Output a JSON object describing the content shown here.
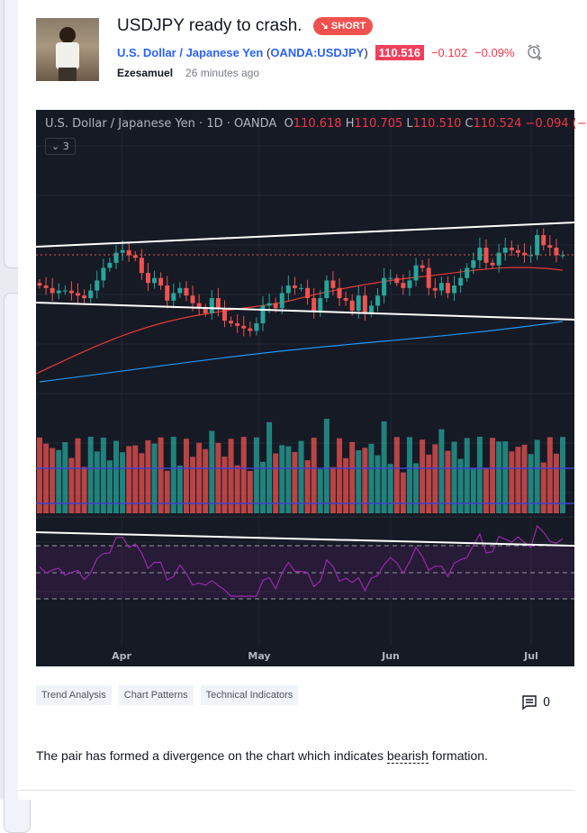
{
  "idea": {
    "title": "USDJPY ready to crash.",
    "badge": "SHORT",
    "badge_icon": "arrow-down-right-icon",
    "author": "Ezesamuel",
    "time": "26 minutes ago"
  },
  "symbol": {
    "name": "U.S. Dollar / Japanese Yen",
    "open_paren": "(",
    "ticker": "OANDA:USDJPY",
    "close_paren": ")",
    "price": "110.516",
    "change": "−0.102",
    "change_pct": "−0.09%"
  },
  "chart": {
    "legend": {
      "name": "U.S. Dollar / Japanese Yen · 1D · OANDA",
      "o_label": "O",
      "o": "110.618",
      "h_label": "H",
      "h": "110.705",
      "l_label": "L",
      "l": "110.510",
      "c_label": "C",
      "c": "110.524",
      "chg": "−0.094 (−"
    },
    "indicators_toggle": "⌄ 3",
    "months": [
      "Apr",
      "May",
      "Jun",
      "Jul"
    ],
    "current_price": 110.516,
    "closes": [
      109.3,
      109.2,
      109.0,
      109.1,
      109.1,
      109.0,
      108.9,
      108.8,
      109.1,
      109.5,
      110.0,
      110.2,
      110.6,
      110.7,
      110.5,
      110.4,
      109.8,
      109.4,
      109.6,
      109.3,
      108.7,
      109.0,
      109.2,
      108.9,
      108.6,
      108.4,
      108.2,
      108.8,
      108.4,
      107.9,
      107.8,
      107.7,
      107.6,
      107.5,
      107.8,
      108.5,
      108.6,
      108.4,
      109.0,
      109.3,
      109.2,
      109.2,
      108.8,
      108.3,
      108.8,
      109.5,
      109.2,
      108.8,
      108.7,
      108.3,
      108.9,
      108.2,
      108.5,
      108.9,
      109.6,
      109.6,
      109.4,
      109.2,
      109.5,
      110.1,
      110.0,
      109.2,
      109.1,
      109.4,
      109.0,
      109.3,
      109.6,
      110.0,
      110.3,
      110.8,
      110.2,
      110.1,
      110.6,
      110.8,
      110.7,
      110.6,
      110.5,
      110.5,
      111.3,
      110.9,
      110.8,
      110.5,
      110.5
    ],
    "colors": {
      "up": "#26a69a",
      "down": "#ef5350",
      "ma_fast": "#e53935",
      "ma_slow": "#2196f3",
      "rsi": "#9c27b0",
      "bg": "#161a25"
    }
  },
  "tags": [
    "Trend Analysis",
    "Chart Patterns",
    "Technical Indicators"
  ],
  "comments_count": "0",
  "description": {
    "before": "The pair has formed a divergence on the chart which indicates ",
    "highlight": "bearish",
    "after": " formation."
  }
}
